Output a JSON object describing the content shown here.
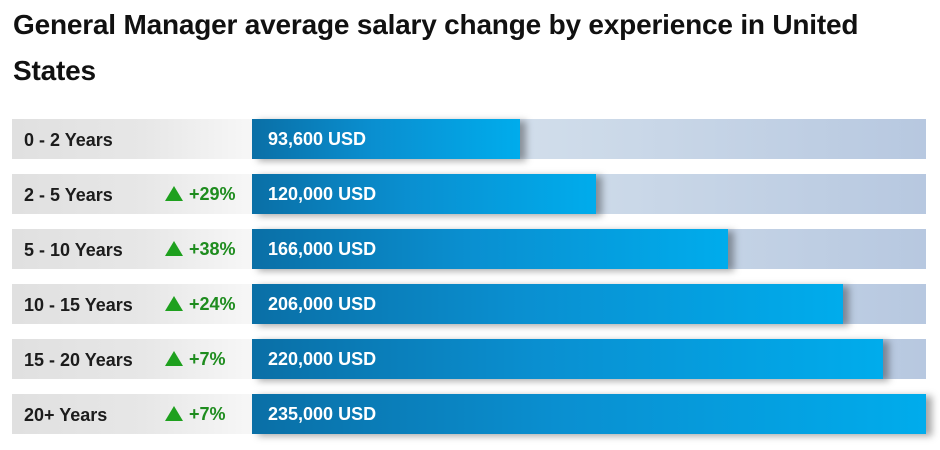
{
  "title": "General Manager average salary change by experience in United States",
  "chart_data": {
    "type": "bar",
    "orientation": "horizontal",
    "categories": [
      "0 - 2 Years",
      "2 - 5 Years",
      "5 - 10 Years",
      "10 - 15 Years",
      "15 - 20 Years",
      "20+ Years"
    ],
    "values": [
      93600,
      120000,
      166000,
      206000,
      220000,
      235000
    ],
    "value_labels": [
      "93,600 USD",
      "120,000 USD",
      "166,000 USD",
      "206,000 USD",
      "220,000 USD",
      "235,000 USD"
    ],
    "changes": [
      "",
      "+29%",
      "+38%",
      "+24%",
      "+7%",
      "+7%"
    ],
    "unit": "USD",
    "xlim": [
      0,
      235000
    ],
    "colors": {
      "bar_start": "#0a6fa6",
      "bar_end": "#00acec",
      "track_start": "#dfe8f1",
      "track_end": "#b7c8e0",
      "increase": "#1ea01e"
    }
  }
}
